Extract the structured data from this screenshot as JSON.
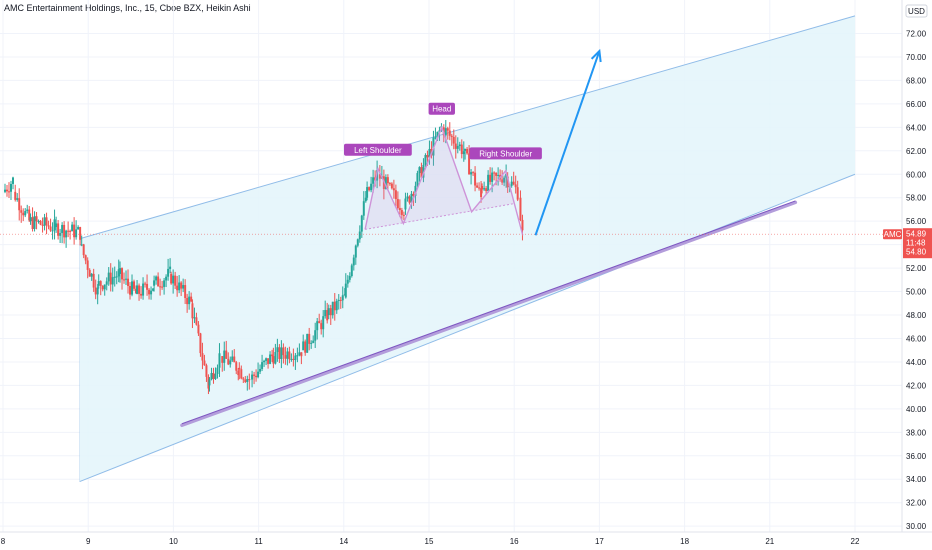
{
  "header": {
    "title": "AMC Entertainment Holdings, Inc., 15, Cboe BZX, Heikin Ashi",
    "currency": "USD"
  },
  "price_tag": {
    "symbol": "AMC",
    "price": "54.89",
    "countdown": "11:48",
    "extra": "54.80"
  },
  "colors": {
    "up": "#26a69a",
    "down": "#ef5350",
    "channel_fill": "#e3f4fa",
    "channel_line": "#90bce8",
    "support": "#b39ddb",
    "pattern": "#ce93d8",
    "pattern_label": "#ab47bc",
    "arrow": "#2196f3",
    "price_tag": "#ef5350"
  },
  "chart_data": {
    "type": "candlestick",
    "style": "Heikin Ashi",
    "interval": "15",
    "exchange": "Cboe BZX",
    "y_axis": {
      "side": "right",
      "ticks": [
        30,
        32,
        34,
        36,
        38,
        40,
        42,
        44,
        46,
        48,
        50,
        52,
        54,
        56,
        58,
        60,
        62,
        64,
        66,
        68,
        70,
        72
      ],
      "tick_labels": [
        "30.00",
        "32.00",
        "34.00",
        "36.00",
        "38.00",
        "40.00",
        "42.00",
        "44.00",
        "46.00",
        "48.00",
        "50.00",
        "52.00",
        "54.00",
        "56.00",
        "58.00",
        "60.00",
        "62.00",
        "64.00",
        "66.00",
        "68.00",
        "70.00",
        "72.00"
      ],
      "range": [
        29.5,
        73.5
      ]
    },
    "x_axis": {
      "tick_labels": [
        "8",
        "9",
        "10",
        "11",
        "14",
        "15",
        "16",
        "17",
        "18",
        "21",
        "22"
      ],
      "tick_positions": [
        8,
        9,
        10,
        11,
        12,
        13,
        14,
        15,
        16,
        17,
        18
      ],
      "range": [
        8,
        18.4
      ]
    },
    "last_price": 54.89,
    "grid": true,
    "segments": [
      {
        "x0": 8.0,
        "x1": 8.12,
        "y0": 58.5,
        "y1": 59.5
      },
      {
        "x0": 8.12,
        "x1": 8.3,
        "y0": 58.5,
        "y1": 56.0
      },
      {
        "x0": 8.3,
        "x1": 8.6,
        "y0": 56.0,
        "y1": 55.5
      },
      {
        "x0": 8.6,
        "x1": 8.9,
        "y0": 55.5,
        "y1": 55.0
      },
      {
        "x0": 8.9,
        "x1": 9.1,
        "y0": 54.0,
        "y1": 50.0
      },
      {
        "x0": 9.1,
        "x1": 9.35,
        "y0": 50.5,
        "y1": 51.5
      },
      {
        "x0": 9.35,
        "x1": 9.55,
        "y0": 51.5,
        "y1": 49.8
      },
      {
        "x0": 9.55,
        "x1": 9.75,
        "y0": 49.8,
        "y1": 50.5
      },
      {
        "x0": 9.75,
        "x1": 9.95,
        "y0": 50.5,
        "y1": 51.5
      },
      {
        "x0": 9.95,
        "x1": 10.2,
        "y0": 51.5,
        "y1": 49.0
      },
      {
        "x0": 10.2,
        "x1": 10.4,
        "y0": 49.0,
        "y1": 42.0
      },
      {
        "x0": 10.4,
        "x1": 10.55,
        "y0": 42.0,
        "y1": 44.5
      },
      {
        "x0": 10.55,
        "x1": 10.75,
        "y0": 44.5,
        "y1": 43.5
      },
      {
        "x0": 10.75,
        "x1": 10.9,
        "y0": 43.5,
        "y1": 42.5
      },
      {
        "x0": 10.9,
        "x1": 11.15,
        "y0": 42.5,
        "y1": 44.5
      },
      {
        "x0": 11.15,
        "x1": 11.5,
        "y0": 44.5,
        "y1": 45.0
      },
      {
        "x0": 11.5,
        "x1": 11.8,
        "y0": 45.0,
        "y1": 48.0
      },
      {
        "x0": 11.8,
        "x1": 12.0,
        "y0": 48.0,
        "y1": 49.5
      },
      {
        "x0": 12.0,
        "x1": 12.25,
        "y0": 49.5,
        "y1": 58.0
      },
      {
        "x0": 12.25,
        "x1": 12.4,
        "y0": 58.0,
        "y1": 60.0
      },
      {
        "x0": 12.4,
        "x1": 12.7,
        "y0": 60.0,
        "y1": 57.0
      },
      {
        "x0": 12.7,
        "x1": 13.15,
        "y0": 57.0,
        "y1": 64.0
      },
      {
        "x0": 13.15,
        "x1": 13.4,
        "y0": 64.0,
        "y1": 62.0
      },
      {
        "x0": 13.4,
        "x1": 13.6,
        "y0": 62.0,
        "y1": 58.0
      },
      {
        "x0": 13.6,
        "x1": 13.9,
        "y0": 59.0,
        "y1": 60.0
      },
      {
        "x0": 13.9,
        "x1": 14.05,
        "y0": 59.8,
        "y1": 58.5
      },
      {
        "x0": 14.05,
        "x1": 14.1,
        "y0": 58.0,
        "y1": 54.89
      }
    ],
    "annotations": {
      "channel": {
        "upper": [
          [
            8.9,
            54.5
          ],
          [
            18.0,
            73.5
          ]
        ],
        "lower": [
          [
            8.9,
            33.8
          ],
          [
            18.0,
            60.0
          ]
        ],
        "type": "parallel channel"
      },
      "support_line": {
        "points": [
          [
            10.1,
            38.6
          ],
          [
            17.3,
            57.6
          ]
        ]
      },
      "head_and_shoulders": {
        "points": [
          [
            12.25,
            55.3
          ],
          [
            12.4,
            60.5
          ],
          [
            12.7,
            55.8
          ],
          [
            13.15,
            64.0
          ],
          [
            13.5,
            56.8
          ],
          [
            13.9,
            60.3
          ],
          [
            14.1,
            54.8
          ]
        ],
        "neckline": [
          [
            12.25,
            55.3
          ],
          [
            14.0,
            57.5
          ]
        ],
        "labels": [
          {
            "text": "Left Shoulder",
            "x": 12.4,
            "y": 62.0
          },
          {
            "text": "Head",
            "x": 13.15,
            "y": 65.5
          },
          {
            "text": "Right Shoulder",
            "x": 13.9,
            "y": 61.7
          }
        ]
      },
      "projection_arrow": {
        "from": [
          14.25,
          54.8
        ],
        "to": [
          15.0,
          70.5
        ]
      }
    }
  }
}
